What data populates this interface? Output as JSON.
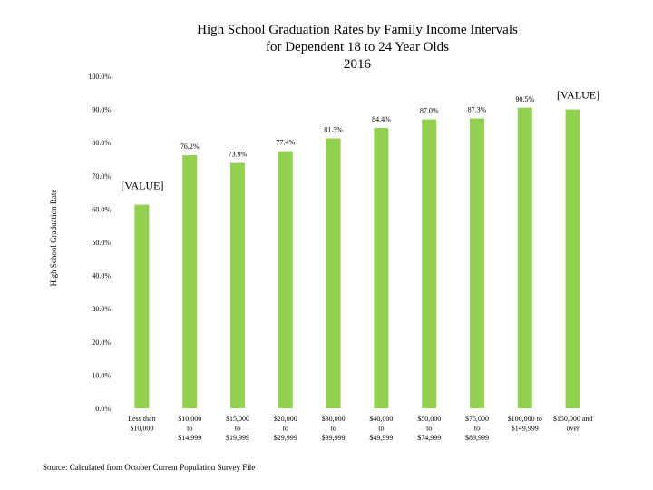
{
  "chart_data": {
    "type": "bar",
    "title_lines": [
      "High School Graduation Rates by Family Income Intervals",
      "for Dependent 18 to 24 Year Olds",
      "2016"
    ],
    "ylabel": "High School Graduation Rate",
    "ylim": [
      0,
      100
    ],
    "y_ticks": [
      "0.0%",
      "10.0%",
      "20.0%",
      "30.0%",
      "40.0%",
      "50.0%",
      "60.0%",
      "70.0%",
      "80.0%",
      "90.0%",
      "100.0%"
    ],
    "grid": false,
    "bar_color": "#92D050",
    "categories": [
      [
        "Less than",
        "$10,000"
      ],
      [
        "$10,000",
        "to",
        "$14,999"
      ],
      [
        "$15,000",
        "to",
        "$19,999"
      ],
      [
        "$20,000",
        "to",
        "$29,999"
      ],
      [
        "$30,000",
        "to",
        "$39,999"
      ],
      [
        "$40,000",
        "to",
        "$49,999"
      ],
      [
        "$50,000",
        "to",
        "$74,999"
      ],
      [
        "$75,000",
        "to",
        "$89,999"
      ],
      [
        "$100,000 to",
        "$149,999"
      ],
      [
        "$150,000 and",
        "over"
      ]
    ],
    "values": [
      61.3,
      76.2,
      73.9,
      77.4,
      81.3,
      84.4,
      87.0,
      87.3,
      90.5,
      90.0
    ],
    "data_labels": [
      "[VALUE]",
      "76.2%",
      "73.9%",
      "77.4%",
      "81.3%",
      "84.4%",
      "87.0%",
      "87.3%",
      "90.5%",
      "[VALUE]"
    ],
    "source": "Source: Calculated from October Current Population Survey File"
  }
}
